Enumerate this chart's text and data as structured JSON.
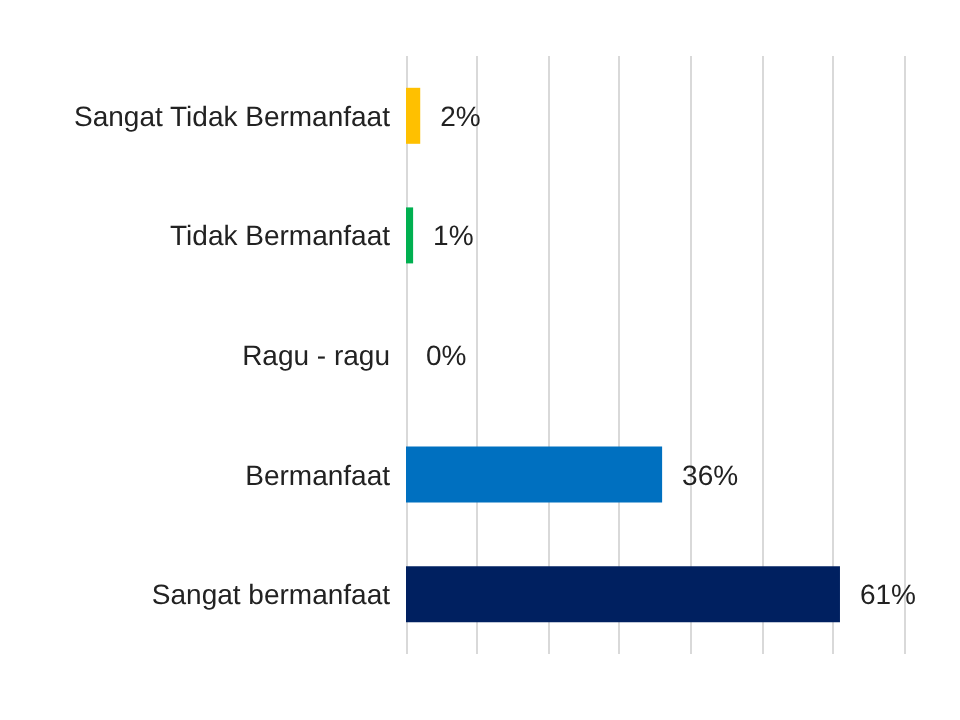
{
  "chart_data": {
    "type": "bar",
    "orientation": "horizontal",
    "categories": [
      "Sangat Tidak Bermanfaat",
      "Tidak Bermanfaat",
      "Ragu - ragu",
      "Bermanfaat",
      "Sangat bermanfaat"
    ],
    "values": [
      2,
      1,
      0,
      36,
      61
    ],
    "colors": [
      "#ffc000",
      "#00b050",
      "#7f7f7f",
      "#0070c0",
      "#002060"
    ],
    "value_labels": [
      "2%",
      "1%",
      "0%",
      "36%",
      "61%"
    ],
    "xlim": [
      0,
      70
    ],
    "xticks": [
      {
        "value": 0,
        "label": null
      },
      {
        "value": 10,
        "label": null
      },
      {
        "value": 20,
        "label": null
      },
      {
        "value": 30,
        "label": null
      },
      {
        "value": 40,
        "label": null
      },
      {
        "value": 50,
        "label": null
      },
      {
        "value": 60,
        "label": null
      },
      {
        "value": 70,
        "label": null
      }
    ],
    "grid": "x",
    "tick_labels": "y"
  }
}
